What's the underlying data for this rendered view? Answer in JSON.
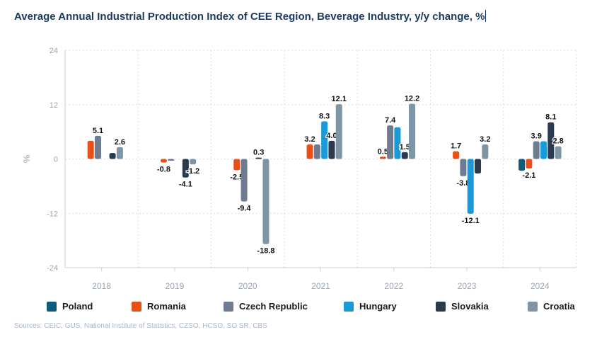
{
  "chart_data": {
    "type": "bar",
    "title": "Average Annual Industrial Production Index of CEE Region, Beverage Industry, y/y change, %",
    "ylabel": "%",
    "xlabel": "",
    "ylim": [
      -24,
      24
    ],
    "yticks": [
      24,
      12,
      0,
      -12,
      -24
    ],
    "categories": [
      "2018",
      "2019",
      "2020",
      "2021",
      "2022",
      "2023",
      "2024"
    ],
    "series": [
      {
        "name": "Poland",
        "color": "#0d5c7c",
        "values": [
          null,
          null,
          null,
          null,
          null,
          null,
          -2.6
        ],
        "labels": [
          null,
          null,
          null,
          null,
          null,
          null,
          null
        ]
      },
      {
        "name": "Romania",
        "color": "#e8501a",
        "values": [
          4.0,
          -0.8,
          -2.5,
          3.2,
          0.5,
          1.7,
          -2.1
        ],
        "labels": [
          null,
          "-0.8",
          "-2.5",
          "3.2",
          "0.5",
          "1.7",
          "-2.1"
        ]
      },
      {
        "name": "Czech Republic",
        "color": "#6e7b91",
        "values": [
          5.1,
          -0.4,
          -9.4,
          3.2,
          7.4,
          -3.8,
          3.9
        ],
        "labels": [
          "5.1",
          null,
          "-9.4",
          null,
          "7.4",
          "-3.8",
          "3.9"
        ]
      },
      {
        "name": "Hungary",
        "color": "#1a9ad6",
        "values": [
          null,
          null,
          null,
          8.3,
          7.0,
          -12.1,
          3.9
        ],
        "labels": [
          null,
          null,
          null,
          "8.3",
          null,
          "-12.1",
          null
        ]
      },
      {
        "name": "Slovakia",
        "color": "#2b3a4e",
        "values": [
          1.3,
          -4.1,
          0.3,
          4.0,
          1.5,
          -3.2,
          8.1
        ],
        "labels": [
          null,
          "-4.1",
          "0.3",
          "4.0",
          "1.5",
          null,
          "8.1"
        ]
      },
      {
        "name": "Croatia",
        "color": "#7e95a6",
        "values": [
          2.6,
          -1.2,
          -18.8,
          12.1,
          12.2,
          3.2,
          2.8
        ],
        "labels": [
          "2.6",
          "-1.2",
          "-18.8",
          "12.1",
          "12.2",
          "3.2",
          "2.8"
        ]
      }
    ]
  },
  "source": "Sources: CEIC, GUS, National Institute of Statistics, CZSO, HCSO, SO SR, CBS"
}
